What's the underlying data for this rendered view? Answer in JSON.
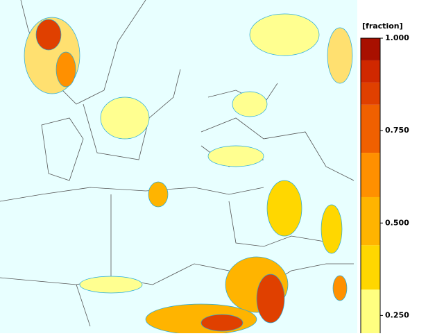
{
  "colorbar": {
    "label": "[fraction]",
    "range": [
      0.2,
      1.0
    ],
    "levels": [
      0.2,
      0.32,
      0.44,
      0.57,
      0.69,
      0.82,
      0.88,
      0.94,
      1.0
    ],
    "colors": [
      "#ffff80",
      "#ffd700",
      "#ffb400",
      "#ff9000",
      "#f06000",
      "#e04000",
      "#d02800",
      "#a81000"
    ],
    "ticks": [
      {
        "value": 1.0,
        "label": "1.000"
      },
      {
        "value": 0.75,
        "label": "0.750"
      },
      {
        "value": 0.5,
        "label": "0.500"
      },
      {
        "value": 0.25,
        "label": "0.250"
      }
    ]
  }
}
